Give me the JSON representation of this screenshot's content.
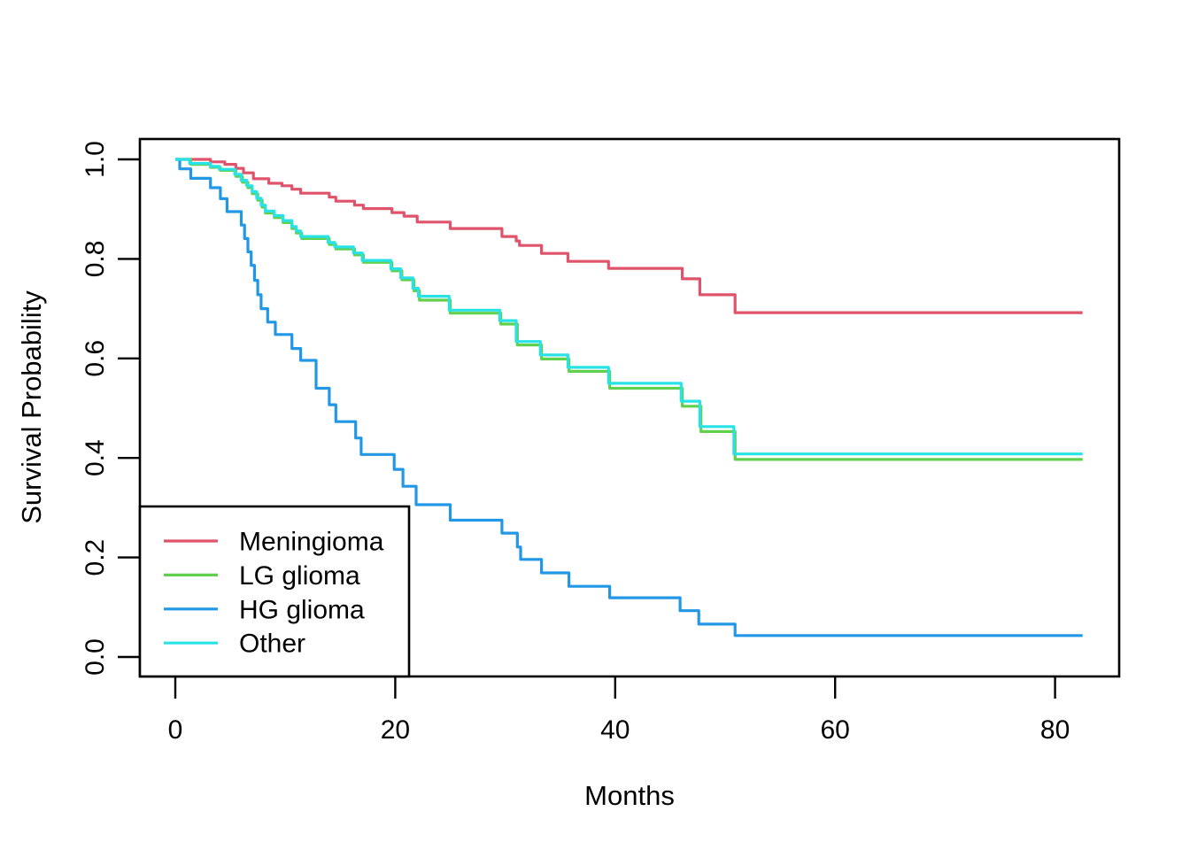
{
  "figure": {
    "background": "#ffffff"
  },
  "chart_data": {
    "type": "line",
    "subtype": "kaplan-meier-step",
    "title": "",
    "xlabel": "Months",
    "ylabel": "Survival Probability",
    "grid": false,
    "x_axis": {
      "ticks": [
        0,
        20,
        40,
        60,
        80
      ],
      "range": [
        -3.3,
        85.9
      ]
    },
    "y_axis": {
      "ticks": [
        "0.0",
        "0.2",
        "0.4",
        "0.6",
        "0.8",
        "1.0"
      ],
      "range": [
        -0.04,
        1.04
      ]
    },
    "legend": {
      "position": "bottom-left",
      "entries": [
        "Meningioma",
        "LG glioma",
        "HG glioma",
        "Other"
      ]
    },
    "series": [
      {
        "name": "Meningioma",
        "color": "#DF536B",
        "points": [
          [
            0,
            1.0
          ],
          [
            3.2,
            0.995
          ],
          [
            4.5,
            0.99
          ],
          [
            5.5,
            0.982
          ],
          [
            6.2,
            0.973
          ],
          [
            7.1,
            0.961
          ],
          [
            8.5,
            0.952
          ],
          [
            9.7,
            0.947
          ],
          [
            10.6,
            0.94
          ],
          [
            11.4,
            0.932
          ],
          [
            14.0,
            0.924
          ],
          [
            14.6,
            0.916
          ],
          [
            16.3,
            0.908
          ],
          [
            17.1,
            0.901
          ],
          [
            19.7,
            0.893
          ],
          [
            20.8,
            0.886
          ],
          [
            22.0,
            0.874
          ],
          [
            25.0,
            0.861
          ],
          [
            29.7,
            0.845
          ],
          [
            31.0,
            0.836
          ],
          [
            31.3,
            0.827
          ],
          [
            33.3,
            0.811
          ],
          [
            35.7,
            0.795
          ],
          [
            39.4,
            0.781
          ],
          [
            46.1,
            0.76
          ],
          [
            47.7,
            0.728
          ],
          [
            50.9,
            0.692
          ],
          [
            82.5,
            0.692
          ]
        ]
      },
      {
        "name": "LG glioma",
        "color": "#61D04F",
        "points": [
          [
            0,
            1.0
          ],
          [
            1.4,
            0.99
          ],
          [
            3.2,
            0.984
          ],
          [
            4.1,
            0.978
          ],
          [
            5.5,
            0.966
          ],
          [
            6.1,
            0.954
          ],
          [
            6.6,
            0.943
          ],
          [
            7.0,
            0.931
          ],
          [
            7.5,
            0.918
          ],
          [
            7.9,
            0.904
          ],
          [
            8.2,
            0.892
          ],
          [
            9.0,
            0.883
          ],
          [
            9.8,
            0.873
          ],
          [
            10.6,
            0.861
          ],
          [
            11.0,
            0.852
          ],
          [
            11.5,
            0.841
          ],
          [
            14.0,
            0.829
          ],
          [
            14.6,
            0.82
          ],
          [
            16.3,
            0.808
          ],
          [
            17.1,
            0.793
          ],
          [
            19.7,
            0.776
          ],
          [
            20.6,
            0.758
          ],
          [
            21.7,
            0.736
          ],
          [
            22.2,
            0.717
          ],
          [
            25.0,
            0.691
          ],
          [
            29.6,
            0.669
          ],
          [
            31.1,
            0.627
          ],
          [
            33.3,
            0.599
          ],
          [
            35.8,
            0.574
          ],
          [
            39.5,
            0.54
          ],
          [
            46.1,
            0.504
          ],
          [
            47.8,
            0.453
          ],
          [
            50.9,
            0.397
          ],
          [
            82.5,
            0.397
          ]
        ]
      },
      {
        "name": "HG glioma",
        "color": "#2297E6",
        "points": [
          [
            0,
            1.0
          ],
          [
            0.4,
            0.981
          ],
          [
            1.4,
            0.962
          ],
          [
            3.2,
            0.943
          ],
          [
            4.1,
            0.921
          ],
          [
            4.7,
            0.895
          ],
          [
            6.0,
            0.868
          ],
          [
            6.3,
            0.841
          ],
          [
            6.6,
            0.814
          ],
          [
            6.9,
            0.787
          ],
          [
            7.2,
            0.757
          ],
          [
            7.5,
            0.728
          ],
          [
            7.8,
            0.7
          ],
          [
            8.4,
            0.673
          ],
          [
            9.1,
            0.648
          ],
          [
            10.6,
            0.62
          ],
          [
            11.4,
            0.596
          ],
          [
            12.8,
            0.54
          ],
          [
            14.0,
            0.507
          ],
          [
            14.6,
            0.473
          ],
          [
            16.4,
            0.44
          ],
          [
            16.9,
            0.407
          ],
          [
            19.9,
            0.377
          ],
          [
            20.7,
            0.343
          ],
          [
            21.9,
            0.306
          ],
          [
            25.0,
            0.275
          ],
          [
            29.7,
            0.249
          ],
          [
            31.1,
            0.221
          ],
          [
            31.4,
            0.196
          ],
          [
            33.3,
            0.169
          ],
          [
            35.8,
            0.142
          ],
          [
            39.5,
            0.119
          ],
          [
            45.9,
            0.093
          ],
          [
            47.6,
            0.066
          ],
          [
            50.9,
            0.043
          ],
          [
            82.5,
            0.043
          ]
        ]
      },
      {
        "name": "Other",
        "color": "#28E2E5",
        "points": [
          [
            0,
            1.0
          ],
          [
            1.3,
            0.992
          ],
          [
            3.2,
            0.986
          ],
          [
            4.0,
            0.98
          ],
          [
            5.4,
            0.97
          ],
          [
            6.0,
            0.958
          ],
          [
            6.5,
            0.947
          ],
          [
            7.0,
            0.935
          ],
          [
            7.4,
            0.922
          ],
          [
            7.8,
            0.908
          ],
          [
            8.2,
            0.896
          ],
          [
            9.0,
            0.887
          ],
          [
            9.8,
            0.877
          ],
          [
            10.6,
            0.865
          ],
          [
            11.0,
            0.856
          ],
          [
            11.4,
            0.845
          ],
          [
            13.9,
            0.833
          ],
          [
            14.5,
            0.824
          ],
          [
            16.2,
            0.812
          ],
          [
            17.0,
            0.797
          ],
          [
            19.6,
            0.78
          ],
          [
            20.5,
            0.762
          ],
          [
            21.6,
            0.741
          ],
          [
            22.1,
            0.725
          ],
          [
            24.9,
            0.697
          ],
          [
            29.5,
            0.676
          ],
          [
            31.0,
            0.634
          ],
          [
            33.2,
            0.607
          ],
          [
            35.7,
            0.582
          ],
          [
            39.4,
            0.55
          ],
          [
            46.0,
            0.514
          ],
          [
            47.7,
            0.463
          ],
          [
            50.8,
            0.408
          ],
          [
            82.5,
            0.408
          ]
        ]
      }
    ]
  }
}
